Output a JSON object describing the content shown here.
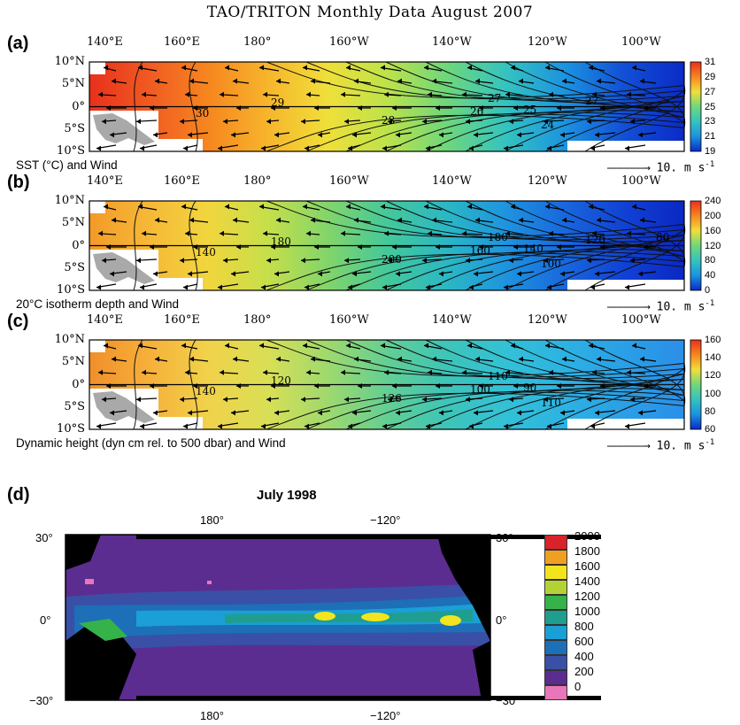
{
  "title": "TAO/TRITON Monthly Data August 2007",
  "panels": [
    {
      "letter": "(a)",
      "caption": "SST (°C) and Wind",
      "wind_scale": "10. m s",
      "wind_scale_exp": "-1",
      "lon_ticks": [
        "140°E",
        "160°E",
        "180°",
        "160°W",
        "140°W",
        "120°W",
        "100°W"
      ],
      "lat_ticks": [
        "10°N",
        "5°N",
        "0°",
        "5°S",
        "10°S"
      ],
      "colorbar_ticks": [
        "31",
        "29",
        "27",
        "25",
        "23",
        "21",
        "19"
      ],
      "contour_labels": [
        "30",
        "29",
        "28",
        "27",
        "26",
        "25",
        "24",
        "27"
      ]
    },
    {
      "letter": "(b)",
      "caption": "20°C isotherm depth and Wind",
      "wind_scale": "10. m s",
      "wind_scale_exp": "-1",
      "lon_ticks": [
        "140°E",
        "160°E",
        "180°",
        "160°W",
        "140°W",
        "120°W",
        "100°W"
      ],
      "lat_ticks": [
        "10°N",
        "5°N",
        "0°",
        "5°S",
        "10°S"
      ],
      "colorbar_ticks": [
        "240",
        "200",
        "160",
        "120",
        "80",
        "40",
        "0"
      ],
      "contour_labels": [
        "140",
        "180",
        "200",
        "180",
        "160",
        "140",
        "100",
        "120",
        "80"
      ]
    },
    {
      "letter": "(c)",
      "caption": "Dynamic height (dyn cm rel. to 500 dbar) and Wind",
      "wind_scale": "10. m s",
      "wind_scale_exp": "-1",
      "lon_ticks": [
        "140°E",
        "160°E",
        "180°",
        "160°W",
        "140°W",
        "120°W",
        "100°W"
      ],
      "lat_ticks": [
        "10°N",
        "5°N",
        "0°",
        "5°S",
        "10°S"
      ],
      "colorbar_ticks": [
        "160",
        "140",
        "120",
        "100",
        "80",
        "60"
      ],
      "contour_labels": [
        "140",
        "120",
        "126",
        "110",
        "100",
        "90",
        "110"
      ]
    }
  ],
  "panel_d": {
    "letter": "(d)",
    "title": "July 1998",
    "top_ticks": [
      "180°",
      "−120°"
    ],
    "bottom_ticks": [
      "180°",
      "−120°"
    ],
    "lat_left": [
      "30°",
      "0°",
      "−30°"
    ],
    "lat_right": [
      "30°",
      "0°",
      "−30°"
    ],
    "colorbar": [
      {
        "label": "2000",
        "color": "#d8232a"
      },
      {
        "label": "1800",
        "color": "#f0a020"
      },
      {
        "label": "1600",
        "color": "#f3e51d"
      },
      {
        "label": "1400",
        "color": "#b3d335"
      },
      {
        "label": "1200",
        "color": "#36b24a"
      },
      {
        "label": "1000",
        "color": "#1f9e8f"
      },
      {
        "label": "800",
        "color": "#1a9fd6"
      },
      {
        "label": "600",
        "color": "#1d6fb8"
      },
      {
        "label": "400",
        "color": "#3a4fa6"
      },
      {
        "label": "200",
        "color": "#5b2d90"
      },
      {
        "label": "0",
        "color": "#e876b8"
      }
    ]
  }
}
